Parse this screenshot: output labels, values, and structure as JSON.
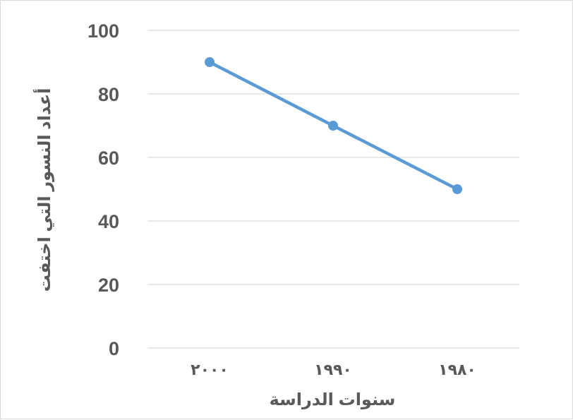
{
  "chart_data": {
    "type": "line",
    "title": "",
    "xlabel": "سنوات الدراسة",
    "ylabel": "أعداد النسور التي اختفت",
    "categories": [
      "٢٠٠٠",
      "١٩٩٠",
      "١٩٨٠"
    ],
    "series": [
      {
        "values": [
          90,
          70,
          50
        ],
        "color": "#5b9bd5"
      }
    ],
    "ylim": [
      0,
      100
    ],
    "yticks": [
      "0",
      "20",
      "40",
      "60",
      "80",
      "100"
    ],
    "grid": true,
    "legend": "none"
  }
}
